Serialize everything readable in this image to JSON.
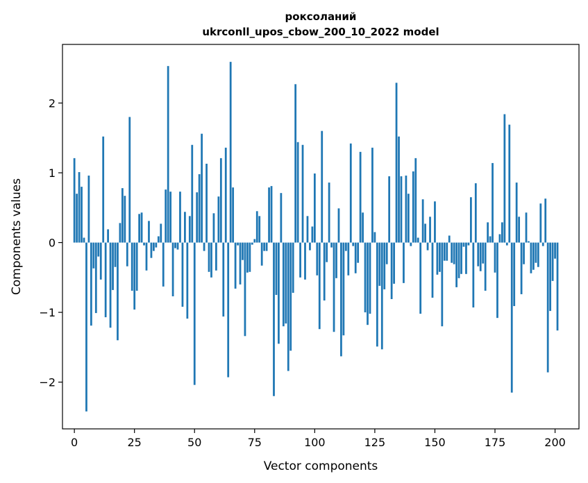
{
  "chart_data": {
    "type": "bar",
    "title": "роксоланий",
    "subtitle": "ukrconll_upos_cbow_200_10_2022 model",
    "xlabel": "Vector components",
    "ylabel": "Components values",
    "xlim": [
      -4.95,
      209.95
    ],
    "ylim": [
      -2.67,
      2.84
    ],
    "xticks": [
      0,
      25,
      50,
      75,
      100,
      125,
      150,
      175,
      200
    ],
    "yticks": [
      -2,
      -1,
      0,
      1,
      2
    ],
    "ytick_labels": [
      "−2",
      "−1",
      "0",
      "1",
      "2"
    ],
    "bar_color": "#1f77b4",
    "grid": false,
    "values": [
      1.21,
      0.7,
      1.01,
      0.8,
      0.07,
      -2.42,
      0.96,
      -1.19,
      -0.37,
      -1.01,
      -0.2,
      -0.53,
      1.52,
      -1.07,
      0.19,
      -1.22,
      -0.68,
      -0.35,
      -1.4,
      0.28,
      0.78,
      0.67,
      -0.34,
      1.8,
      -0.69,
      -0.96,
      -0.69,
      0.41,
      0.43,
      -0.04,
      -0.4,
      0.31,
      -0.22,
      -0.12,
      -0.07,
      0.09,
      0.27,
      -0.63,
      0.76,
      2.53,
      0.73,
      -0.77,
      -0.08,
      -0.1,
      0.73,
      -0.92,
      0.44,
      -1.09,
      0.38,
      1.4,
      -2.04,
      0.72,
      0.98,
      1.56,
      -0.12,
      1.13,
      -0.42,
      -0.5,
      0.42,
      -0.4,
      0.66,
      1.21,
      -1.06,
      1.36,
      -1.93,
      2.59,
      0.79,
      -0.66,
      -0.04,
      -0.6,
      -0.25,
      -1.34,
      -0.43,
      -0.42,
      -0.03,
      0.05,
      0.45,
      0.38,
      -0.33,
      -0.12,
      -0.12,
      0.79,
      0.81,
      -2.2,
      -0.75,
      -1.45,
      0.71,
      -1.2,
      -1.16,
      -1.84,
      -1.55,
      -0.72,
      2.27,
      1.44,
      -0.5,
      1.4,
      -0.53,
      0.38,
      -0.11,
      0.23,
      0.99,
      -0.47,
      -1.24,
      1.6,
      -0.83,
      -0.28,
      0.86,
      -0.07,
      -1.28,
      -0.51,
      0.49,
      -1.63,
      -1.33,
      -0.12,
      -0.47,
      1.42,
      -0.05,
      -0.44,
      -0.29,
      1.3,
      0.43,
      -1.0,
      -1.18,
      -1.02,
      1.36,
      0.15,
      -1.49,
      -0.62,
      -1.53,
      -0.67,
      -0.31,
      0.95,
      -0.81,
      -0.59,
      2.29,
      1.52,
      0.95,
      -0.58,
      0.96,
      0.7,
      -0.05,
      1.02,
      1.21,
      0.07,
      -1.02,
      0.62,
      0.27,
      -0.11,
      0.37,
      -0.79,
      0.59,
      -0.46,
      -0.42,
      -1.2,
      -0.26,
      -0.26,
      0.1,
      -0.29,
      -0.31,
      -0.64,
      -0.51,
      -0.45,
      -0.06,
      -0.45,
      -0.04,
      0.65,
      -0.93,
      0.85,
      -0.34,
      -0.41,
      -0.3,
      -0.69,
      0.29,
      0.09,
      1.14,
      -0.43,
      -1.08,
      0.12,
      0.29,
      1.84,
      -0.04,
      1.69,
      -2.15,
      -0.91,
      0.86,
      0.37,
      -0.74,
      -0.31,
      0.43,
      0.02,
      -0.44,
      -0.39,
      -0.29,
      -0.35,
      0.56,
      -0.05,
      0.63,
      -1.86,
      -0.98,
      -0.55,
      -0.23,
      -1.26
    ]
  }
}
